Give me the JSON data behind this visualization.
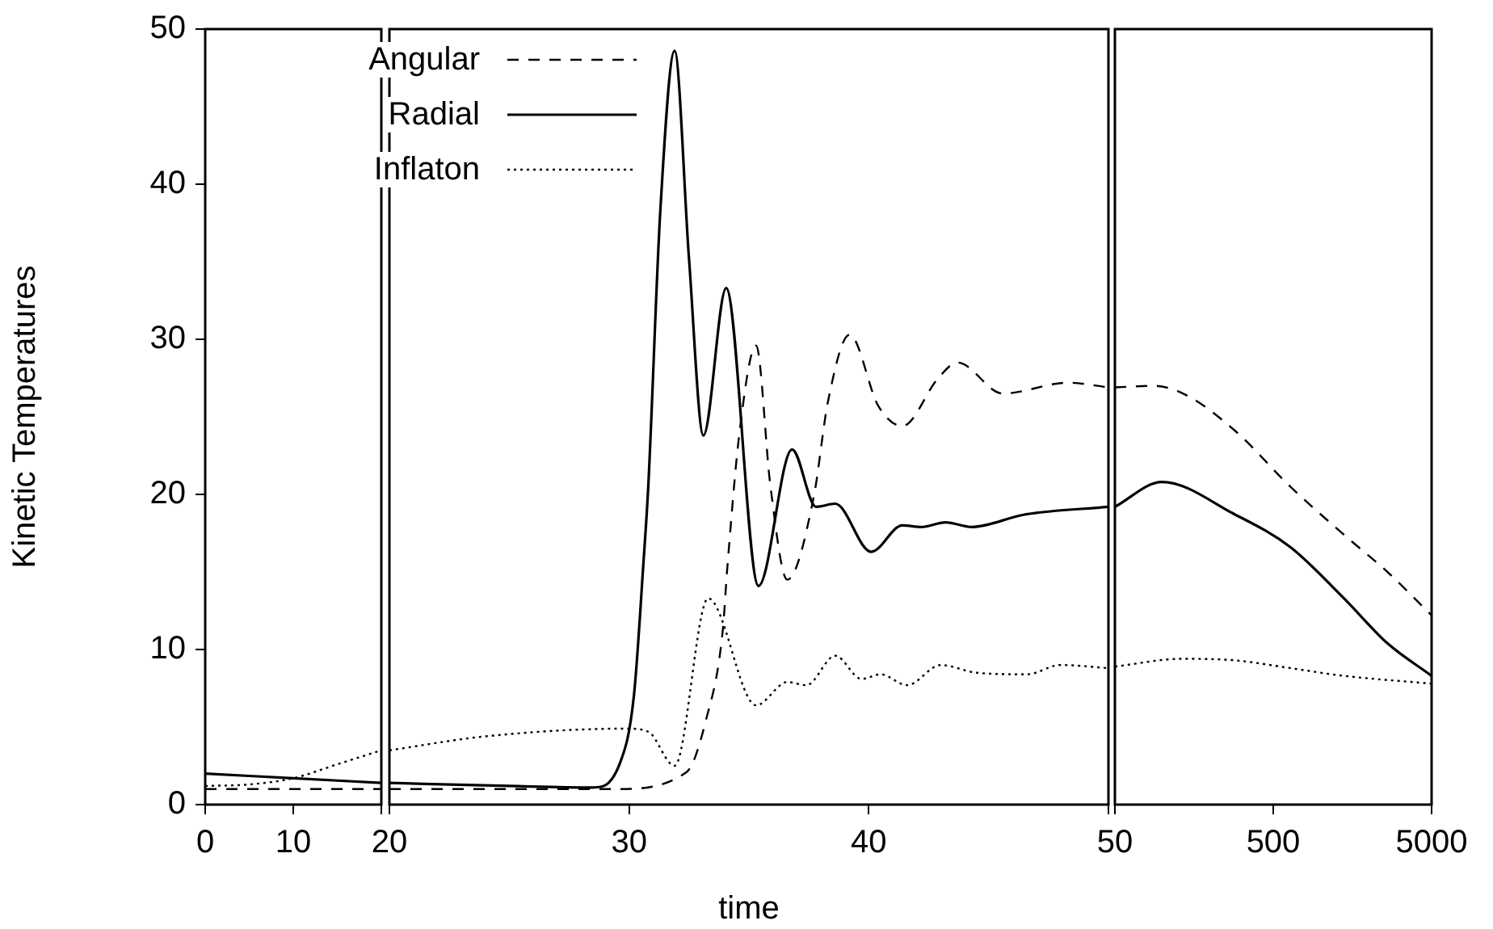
{
  "chart_data": [
    {
      "type": "line",
      "ylabel": "Kinetic Temperatures",
      "xlim": [
        0,
        20
      ],
      "xticks": [
        0,
        10,
        {
          "value": 20,
          "label": null
        }
      ],
      "ylim": [
        0,
        50
      ],
      "yticks": [
        0,
        10,
        20,
        30,
        40,
        50
      ],
      "grid": false,
      "series": [
        {
          "color": "#000000",
          "line_style": "dashed",
          "x": [
            0,
            10,
            20
          ],
          "values": [
            1.0,
            1.0,
            1.0
          ]
        },
        {
          "color": "#000000",
          "line_style": "solid",
          "x": [
            0,
            10,
            20
          ],
          "values": [
            2.0,
            1.7,
            1.4
          ]
        },
        {
          "color": "#000000",
          "line_style": "dotted",
          "x": [
            0,
            5,
            10,
            15,
            20
          ],
          "values": [
            1.2,
            1.3,
            1.7,
            2.6,
            3.5
          ]
        }
      ]
    },
    {
      "type": "line",
      "xlabel": "time",
      "xlim": [
        20,
        50
      ],
      "xticks": [
        20,
        30,
        40,
        {
          "value": 50,
          "label": null
        }
      ],
      "ylim": [
        0,
        50
      ],
      "yticks": [
        0,
        10,
        20,
        30,
        40,
        50
      ],
      "tick_labels": "x",
      "grid": false,
      "legend": "top left",
      "series": [
        {
          "name": "Angular",
          "color": "#000000",
          "line_style": "dashed",
          "x": [
            20,
            25,
            29.4,
            32.4,
            33.2,
            33.9,
            34.1,
            34.6,
            35.3,
            35.9,
            36.6,
            37.7,
            38.3,
            39.2,
            40.4,
            41.4,
            42.9,
            43.7,
            45.6,
            48.3,
            50
          ],
          "values": [
            1.0,
            1.0,
            1.0,
            2.1,
            5.4,
            11.1,
            15.3,
            23.9,
            29.6,
            20.5,
            14.5,
            19.8,
            26.0,
            30.3,
            25.7,
            24.4,
            27.5,
            28.5,
            26.5,
            27.2,
            26.9
          ]
        },
        {
          "name": "Radial",
          "color": "#000000",
          "line_style": "solid",
          "x": [
            20,
            25,
            28.5,
            29.6,
            30.2,
            30.6,
            30.8,
            31.3,
            31.9,
            32.5,
            33.1,
            34.05,
            35.4,
            36.8,
            37.8,
            38.6,
            40.1,
            41.4,
            42.2,
            43.2,
            44.3,
            46.5,
            50
          ],
          "values": [
            1.4,
            1.2,
            1.1,
            2.6,
            7.0,
            15.6,
            20.5,
            38.2,
            48.6,
            35.2,
            23.8,
            33.3,
            14.1,
            22.9,
            19.2,
            19.4,
            16.3,
            18.0,
            17.9,
            18.2,
            17.9,
            18.7,
            19.2
          ]
        },
        {
          "name": "Inflaton",
          "color": "#000000",
          "line_style": "dotted",
          "x": [
            20,
            24,
            29.9,
            30.8,
            31.9,
            33.3,
            35.3,
            36.6,
            37.4,
            38.6,
            39.7,
            40.5,
            41.6,
            43,
            44.5,
            46.6,
            48,
            50
          ],
          "values": [
            3.5,
            4.4,
            4.9,
            4.7,
            2.5,
            13.3,
            6.4,
            7.9,
            7.7,
            9.6,
            8.1,
            8.4,
            7.7,
            9.0,
            8.5,
            8.4,
            9.0,
            8.8
          ]
        }
      ]
    },
    {
      "type": "line",
      "log": "x",
      "xlim": [
        50,
        5000
      ],
      "xticks": [
        50,
        500,
        5000
      ],
      "ylim": [
        0,
        50
      ],
      "yticks": [
        0,
        10,
        20,
        30,
        40,
        50
      ],
      "tick_labels": "x",
      "grid": false,
      "series": [
        {
          "color": "#000000",
          "line_style": "dashed",
          "x": [
            50,
            88,
            141,
            287,
            641,
            1397,
            2630,
            5000
          ],
          "values": [
            26.9,
            27.0,
            26.4,
            24.1,
            20.5,
            17.4,
            15.0,
            12.2
          ]
        },
        {
          "color": "#000000",
          "line_style": "solid",
          "x": [
            50,
            99,
            287,
            641,
            1397,
            2630,
            5000
          ],
          "values": [
            19.2,
            20.8,
            18.7,
            16.6,
            13.3,
            10.4,
            8.3
          ]
        },
        {
          "color": "#000000",
          "line_style": "dotted",
          "x": [
            50,
            132,
            287,
            641,
            1397,
            5000
          ],
          "values": [
            8.9,
            9.4,
            9.3,
            8.8,
            8.3,
            7.8
          ]
        }
      ]
    }
  ]
}
